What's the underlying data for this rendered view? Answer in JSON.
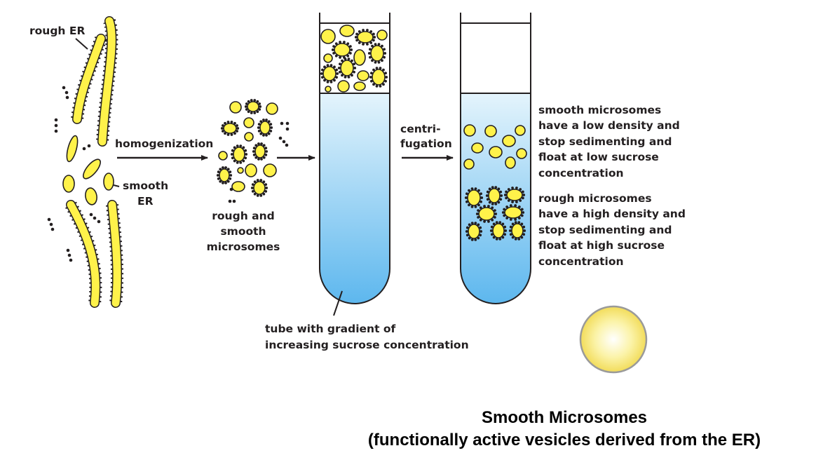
{
  "labels": {
    "rough_er": "rough ER",
    "smooth_er": [
      "smooth",
      "ER"
    ],
    "homogenization": "homogenization",
    "mixture": [
      "rough and",
      "smooth",
      "microsomes"
    ],
    "centrifugation": [
      "centri-",
      "fugation"
    ],
    "tube_caption": [
      "tube with gradient of",
      "increasing sucrose concentration"
    ],
    "smooth_result": [
      "smooth microsomes",
      "have a low density and",
      "stop sedimenting and",
      "float at low sucrose",
      "concentration"
    ],
    "rough_result": [
      "rough microsomes",
      "have a high density and",
      "stop sedimenting and",
      "float at high sucrose",
      "concentration"
    ]
  },
  "title": {
    "line1": "Smooth Microsomes",
    "line2": "(functionally active vesicles derived from the ER)"
  },
  "colors": {
    "vesicle_yellow": "#fff24a",
    "gradient_top": "#e4f4fc",
    "gradient_bottom": "#5db7ee",
    "outline": "#231f20"
  }
}
